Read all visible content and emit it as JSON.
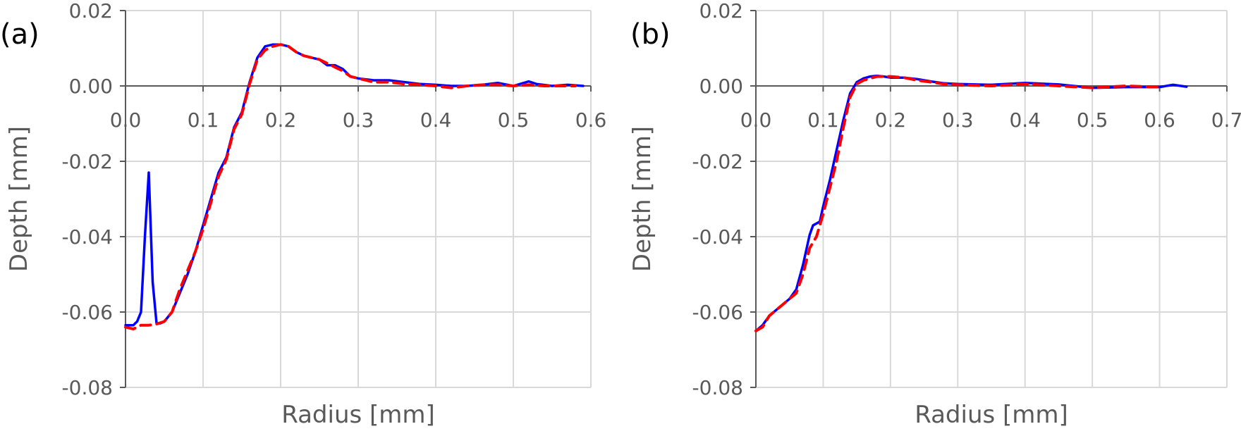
{
  "colors": {
    "series_solid": "#0000ff",
    "series_dashed": "#ff0000",
    "grid": "#d9d9d9",
    "axis": "#595959",
    "text": "#595959"
  },
  "chart_data": [
    {
      "type": "line",
      "panel_label": "(a)",
      "xlabel": "Radius [mm]",
      "ylabel": "Depth [mm]",
      "xlim": [
        0,
        0.6
      ],
      "ylim": [
        -0.08,
        0.02
      ],
      "xticks": [
        0,
        0.1,
        0.2,
        0.3,
        0.4,
        0.5,
        0.6
      ],
      "xtick_labels": [
        "0.0",
        "0.1",
        "0.2",
        "0.3",
        "0.4",
        "0.5",
        "0.6"
      ],
      "yticks": [
        0.02,
        0.0,
        -0.02,
        -0.04,
        -0.06,
        -0.08
      ],
      "ytick_labels": [
        "0.02",
        "0.00",
        "-0.02",
        "-0.04",
        "-0.06",
        "-0.08"
      ],
      "grid": true,
      "series": [
        {
          "style": "solid",
          "color": "#0000ff",
          "x": [
            0,
            0.01,
            0.015,
            0.02,
            0.025,
            0.03,
            0.035,
            0.04,
            0.045,
            0.05,
            0.06,
            0.07,
            0.08,
            0.09,
            0.1,
            0.11,
            0.12,
            0.13,
            0.14,
            0.15,
            0.16,
            0.17,
            0.18,
            0.19,
            0.2,
            0.21,
            0.22,
            0.23,
            0.24,
            0.25,
            0.26,
            0.27,
            0.28,
            0.29,
            0.3,
            0.32,
            0.34,
            0.36,
            0.38,
            0.4,
            0.42,
            0.44,
            0.46,
            0.48,
            0.5,
            0.52,
            0.53,
            0.55,
            0.57,
            0.59
          ],
          "y": [
            -0.0635,
            -0.0635,
            -0.0625,
            -0.06,
            -0.04,
            -0.023,
            -0.052,
            -0.063,
            -0.063,
            -0.0625,
            -0.06,
            -0.055,
            -0.05,
            -0.044,
            -0.037,
            -0.03,
            -0.023,
            -0.019,
            -0.011,
            -0.007,
            0.001,
            0.0075,
            0.0105,
            0.011,
            0.011,
            0.0105,
            0.009,
            0.008,
            0.0075,
            0.007,
            0.0055,
            0.0055,
            0.0045,
            0.0025,
            0.002,
            0.0015,
            0.0015,
            0.001,
            0.0005,
            0.0003,
            0.0,
            0.0,
            0.0003,
            0.0008,
            0.0,
            0.0012,
            0.0005,
            0.0,
            0.0003,
            0.0
          ]
        },
        {
          "style": "dashed",
          "color": "#ff0000",
          "x": [
            0,
            0.01,
            0.02,
            0.03,
            0.04,
            0.05,
            0.06,
            0.07,
            0.08,
            0.09,
            0.1,
            0.11,
            0.12,
            0.13,
            0.14,
            0.15,
            0.16,
            0.17,
            0.18,
            0.19,
            0.2,
            0.21,
            0.22,
            0.23,
            0.24,
            0.25,
            0.26,
            0.27,
            0.28,
            0.29,
            0.3,
            0.32,
            0.34,
            0.36,
            0.38,
            0.4,
            0.42,
            0.44,
            0.46,
            0.48,
            0.5,
            0.52,
            0.54,
            0.56,
            0.58
          ],
          "y": [
            -0.064,
            -0.0645,
            -0.0635,
            -0.0635,
            -0.0632,
            -0.0625,
            -0.06,
            -0.054,
            -0.049,
            -0.044,
            -0.038,
            -0.031,
            -0.024,
            -0.0195,
            -0.0115,
            -0.0075,
            0.0005,
            0.007,
            0.0095,
            0.0105,
            0.011,
            0.0105,
            0.009,
            0.008,
            0.0075,
            0.007,
            0.006,
            0.005,
            0.004,
            0.0025,
            0.002,
            0.001,
            0.001,
            0.0005,
            0.0003,
            0.0,
            -0.0005,
            0.0,
            0.0003,
            0.0003,
            0.0,
            0.0003,
            0.0,
            0.0,
            0.0
          ]
        }
      ]
    },
    {
      "type": "line",
      "panel_label": "(b)",
      "xlabel": "Radius [mm]",
      "ylabel": "Depth [mm]",
      "xlim": [
        0,
        0.7
      ],
      "ylim": [
        -0.08,
        0.02
      ],
      "xticks": [
        0,
        0.1,
        0.2,
        0.3,
        0.4,
        0.5,
        0.6,
        0.7
      ],
      "xtick_labels": [
        "0.0",
        "0.1",
        "0.2",
        "0.3",
        "0.4",
        "0.5",
        "0.6",
        "0.7"
      ],
      "yticks": [
        0.02,
        0.0,
        -0.02,
        -0.04,
        -0.06,
        -0.08
      ],
      "ytick_labels": [
        "0.02",
        "0.00",
        "-0.02",
        "-0.04",
        "-0.06",
        "-0.08"
      ],
      "grid": true,
      "series": [
        {
          "style": "solid",
          "color": "#0000ff",
          "x": [
            0,
            0.01,
            0.02,
            0.03,
            0.04,
            0.05,
            0.06,
            0.07,
            0.08,
            0.085,
            0.09,
            0.095,
            0.1,
            0.11,
            0.12,
            0.13,
            0.14,
            0.15,
            0.16,
            0.17,
            0.18,
            0.19,
            0.2,
            0.22,
            0.24,
            0.26,
            0.28,
            0.3,
            0.35,
            0.4,
            0.45,
            0.5,
            0.55,
            0.6,
            0.62,
            0.64
          ],
          "y": [
            -0.065,
            -0.0635,
            -0.061,
            -0.0595,
            -0.058,
            -0.0565,
            -0.054,
            -0.0475,
            -0.0395,
            -0.037,
            -0.0365,
            -0.036,
            -0.032,
            -0.025,
            -0.017,
            -0.009,
            -0.002,
            0.001,
            0.002,
            0.0025,
            0.0027,
            0.0025,
            0.0022,
            0.0022,
            0.0018,
            0.0012,
            0.0007,
            0.0005,
            0.0003,
            0.0008,
            0.0004,
            -0.0005,
            -0.0003,
            -0.0003,
            0.0003,
            -0.0002
          ]
        },
        {
          "style": "dashed",
          "color": "#ff0000",
          "x": [
            0,
            0.01,
            0.02,
            0.03,
            0.04,
            0.05,
            0.06,
            0.07,
            0.08,
            0.09,
            0.1,
            0.11,
            0.12,
            0.13,
            0.14,
            0.15,
            0.16,
            0.17,
            0.18,
            0.19,
            0.2,
            0.22,
            0.24,
            0.26,
            0.28,
            0.3,
            0.35,
            0.4,
            0.45,
            0.5,
            0.55,
            0.6
          ],
          "y": [
            -0.065,
            -0.064,
            -0.061,
            -0.0595,
            -0.058,
            -0.0565,
            -0.055,
            -0.05,
            -0.043,
            -0.04,
            -0.034,
            -0.027,
            -0.02,
            -0.011,
            -0.003,
            0.0005,
            0.0015,
            0.002,
            0.0025,
            0.0025,
            0.0025,
            0.0022,
            0.0015,
            0.001,
            0.0005,
            0.0003,
            0.0,
            0.0005,
            0.0,
            -0.0005,
            0.0,
            -0.0003
          ]
        }
      ]
    }
  ]
}
